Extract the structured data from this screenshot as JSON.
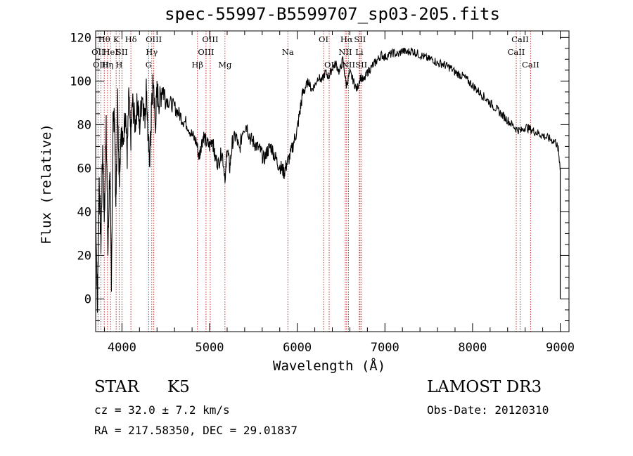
{
  "chart_data": {
    "type": "line",
    "title": "spec-55997-B5599707_sp03-205.fits",
    "xlabel": "Wavelength (Å)",
    "ylabel": "Flux (relative)",
    "xlim": [
      3700,
      9100
    ],
    "ylim": [
      -15,
      123
    ],
    "x_ticks": [
      4000,
      5000,
      6000,
      7000,
      8000,
      9000
    ],
    "y_ticks": [
      0,
      20,
      40,
      60,
      80,
      100,
      120
    ],
    "grid": false,
    "series": [
      {
        "name": "flux",
        "color": "#000000",
        "points": [
          [
            3700,
            45
          ],
          [
            3720,
            -5
          ],
          [
            3740,
            55
          ],
          [
            3760,
            25
          ],
          [
            3780,
            70
          ],
          [
            3800,
            35
          ],
          [
            3820,
            85
          ],
          [
            3840,
            20
          ],
          [
            3860,
            60
          ],
          [
            3880,
            10
          ],
          [
            3900,
            88
          ],
          [
            3920,
            75
          ],
          [
            3930,
            40
          ],
          [
            3950,
            92
          ],
          [
            3970,
            55
          ],
          [
            3990,
            80
          ],
          [
            4010,
            70
          ],
          [
            4040,
            88
          ],
          [
            4060,
            65
          ],
          [
            4080,
            95
          ],
          [
            4100,
            72
          ],
          [
            4120,
            90
          ],
          [
            4150,
            80
          ],
          [
            4180,
            92
          ],
          [
            4200,
            78
          ],
          [
            4230,
            95
          ],
          [
            4260,
            82
          ],
          [
            4280,
            98
          ],
          [
            4300,
            70
          ],
          [
            4320,
            65
          ],
          [
            4340,
            90
          ],
          [
            4360,
            100
          ],
          [
            4380,
            78
          ],
          [
            4400,
            95
          ],
          [
            4430,
            90
          ],
          [
            4460,
            98
          ],
          [
            4500,
            92
          ],
          [
            4550,
            90
          ],
          [
            4600,
            88
          ],
          [
            4650,
            85
          ],
          [
            4700,
            82
          ],
          [
            4750,
            80
          ],
          [
            4800,
            75
          ],
          [
            4850,
            72
          ],
          [
            4880,
            65
          ],
          [
            4900,
            70
          ],
          [
            4930,
            75
          ],
          [
            4960,
            72
          ],
          [
            5000,
            70
          ],
          [
            5030,
            74
          ],
          [
            5060,
            65
          ],
          [
            5100,
            62
          ],
          [
            5140,
            68
          ],
          [
            5180,
            55
          ],
          [
            5200,
            70
          ],
          [
            5230,
            60
          ],
          [
            5260,
            72
          ],
          [
            5300,
            75
          ],
          [
            5340,
            68
          ],
          [
            5380,
            78
          ],
          [
            5420,
            80
          ],
          [
            5460,
            74
          ],
          [
            5500,
            72
          ],
          [
            5540,
            70
          ],
          [
            5580,
            68
          ],
          [
            5620,
            64
          ],
          [
            5660,
            68
          ],
          [
            5700,
            70
          ],
          [
            5740,
            66
          ],
          [
            5780,
            62
          ],
          [
            5820,
            60
          ],
          [
            5850,
            58
          ],
          [
            5880,
            62
          ],
          [
            5920,
            66
          ],
          [
            5960,
            72
          ],
          [
            6000,
            78
          ],
          [
            6030,
            86
          ],
          [
            6060,
            94
          ],
          [
            6100,
            98
          ],
          [
            6130,
            100
          ],
          [
            6160,
            96
          ],
          [
            6200,
            98
          ],
          [
            6240,
            102
          ],
          [
            6280,
            100
          ],
          [
            6320,
            104
          ],
          [
            6360,
            102
          ],
          [
            6400,
            106
          ],
          [
            6440,
            108
          ],
          [
            6480,
            104
          ],
          [
            6520,
            110
          ],
          [
            6560,
            98
          ],
          [
            6600,
            104
          ],
          [
            6640,
            100
          ],
          [
            6680,
            96
          ],
          [
            6720,
            102
          ],
          [
            6760,
            100
          ],
          [
            6800,
            104
          ],
          [
            6840,
            106
          ],
          [
            6880,
            108
          ],
          [
            6920,
            110
          ],
          [
            6960,
            112
          ],
          [
            7000,
            111
          ],
          [
            7050,
            112
          ],
          [
            7100,
            113
          ],
          [
            7150,
            112
          ],
          [
            7200,
            114
          ],
          [
            7250,
            113
          ],
          [
            7300,
            114
          ],
          [
            7350,
            113
          ],
          [
            7400,
            112
          ],
          [
            7450,
            111
          ],
          [
            7500,
            110
          ],
          [
            7550,
            110
          ],
          [
            7600,
            108
          ],
          [
            7650,
            108
          ],
          [
            7700,
            107
          ],
          [
            7750,
            106
          ],
          [
            7800,
            104
          ],
          [
            7850,
            103
          ],
          [
            7900,
            102
          ],
          [
            7950,
            100
          ],
          [
            8000,
            98
          ],
          [
            8050,
            96
          ],
          [
            8100,
            94
          ],
          [
            8150,
            92
          ],
          [
            8200,
            90
          ],
          [
            8250,
            88
          ],
          [
            8300,
            86
          ],
          [
            8350,
            84
          ],
          [
            8400,
            82
          ],
          [
            8450,
            80
          ],
          [
            8500,
            78
          ],
          [
            8550,
            77
          ],
          [
            8600,
            79
          ],
          [
            8650,
            78
          ],
          [
            8700,
            77
          ],
          [
            8750,
            76
          ],
          [
            8800,
            75
          ],
          [
            8850,
            74
          ],
          [
            8900,
            73
          ],
          [
            8950,
            72
          ],
          [
            8980,
            68
          ],
          [
            9000,
            60
          ]
        ]
      }
    ],
    "lines": [
      {
        "label": "Hθ",
        "x": 3798,
        "row": 1
      },
      {
        "label": "OII",
        "x": 3727,
        "row": 2
      },
      {
        "label": "OIII",
        "x": 3760,
        "row": 3
      },
      {
        "label": "HeI",
        "x": 3870,
        "row": 2
      },
      {
        "label": "Hη",
        "x": 3835,
        "row": 3
      },
      {
        "label": "K",
        "x": 3934,
        "row": 1
      },
      {
        "label": "SII",
        "x": 4000,
        "row": 2
      },
      {
        "label": "H",
        "x": 3968,
        "row": 3
      },
      {
        "label": "Hδ",
        "x": 4102,
        "row": 1
      },
      {
        "label": "OIII",
        "x": 4363,
        "row": 1
      },
      {
        "label": "Hγ",
        "x": 4340,
        "row": 2
      },
      {
        "label": "G",
        "x": 4305,
        "row": 3
      },
      {
        "label": "OIII",
        "x": 5007,
        "row": 1
      },
      {
        "label": "OIII",
        "x": 4959,
        "row": 2
      },
      {
        "label": "Hβ",
        "x": 4861,
        "row": 3
      },
      {
        "label": "Mg",
        "x": 5175,
        "row": 3
      },
      {
        "label": "Na",
        "x": 5893,
        "row": 2
      },
      {
        "label": "OI",
        "x": 6300,
        "row": 1
      },
      {
        "label": "OI",
        "x": 6364,
        "row": 3
      },
      {
        "label": "Hα",
        "x": 6563,
        "row": 1
      },
      {
        "label": "NII",
        "x": 6548,
        "row": 2
      },
      {
        "label": "NII",
        "x": 6584,
        "row": 3
      },
      {
        "label": "SII",
        "x": 6716,
        "row": 1
      },
      {
        "label": "Li",
        "x": 6708,
        "row": 2
      },
      {
        "label": "SII",
        "x": 6731,
        "row": 3
      },
      {
        "label": "CaII",
        "x": 8542,
        "row": 1
      },
      {
        "label": "CaII",
        "x": 8498,
        "row": 2
      },
      {
        "label": "CaII",
        "x": 8662,
        "row": 3
      }
    ]
  },
  "info": {
    "class": "STAR",
    "subclass": "K5",
    "cz": "cz = 32.0 ± 7.2 km/s",
    "coords": "RA = 217.58350, DEC =  29.01837",
    "survey": "LAMOST DR3",
    "obs_date": "Obs-Date: 20120310"
  }
}
